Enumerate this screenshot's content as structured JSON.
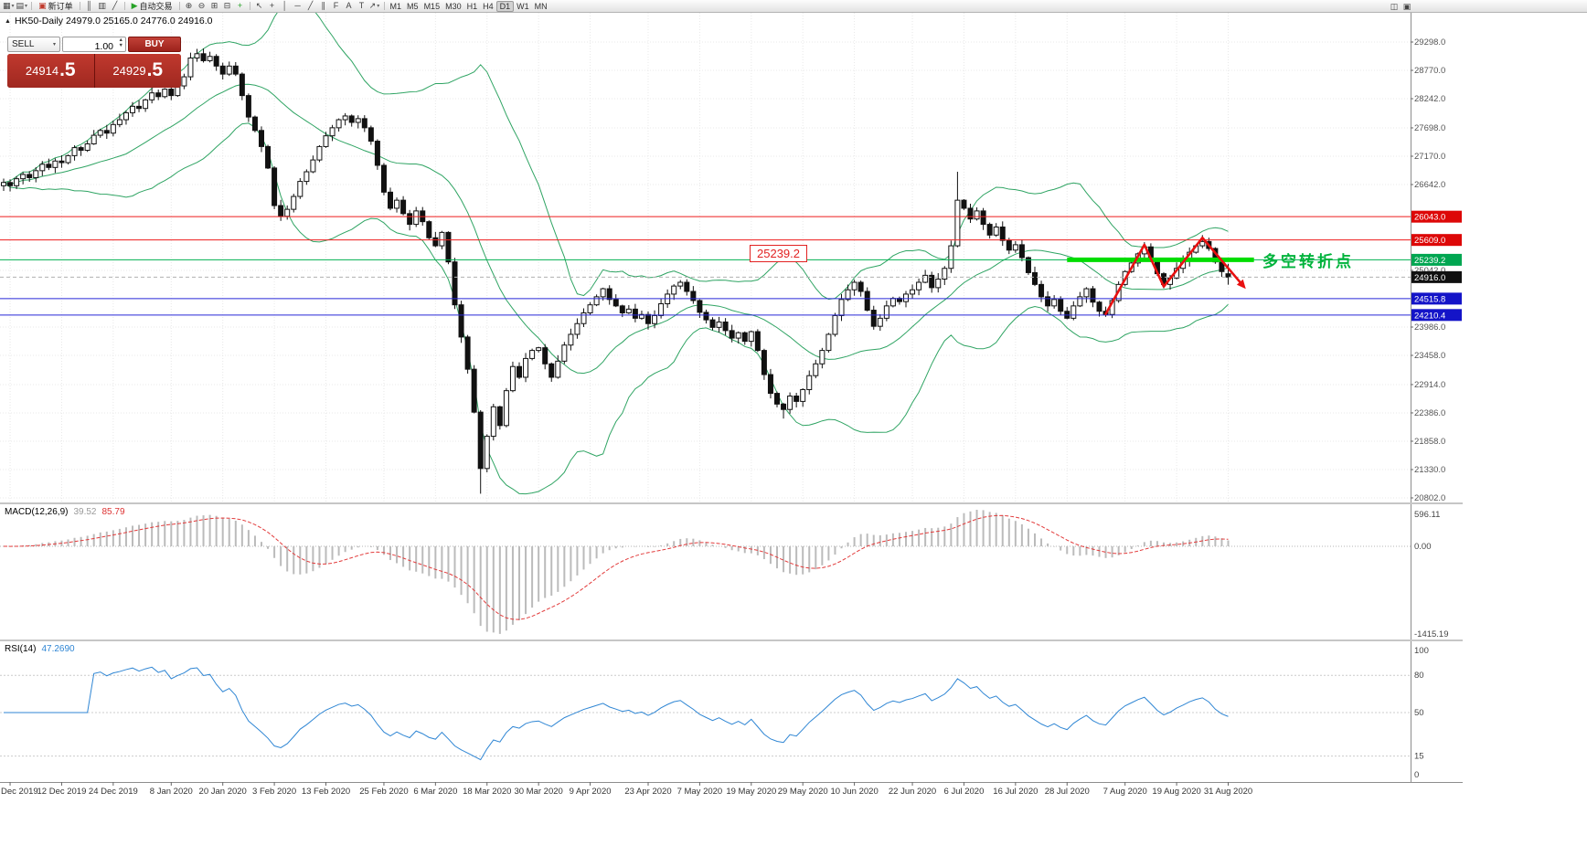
{
  "toolbar": {
    "items": [
      {
        "type": "icon",
        "name": "new-chart-icon",
        "glyph": "▦",
        "caret": true
      },
      {
        "type": "icon",
        "name": "profiles-icon",
        "glyph": "▤",
        "caret": true
      },
      {
        "type": "sep"
      },
      {
        "type": "button",
        "name": "new-order-button",
        "glyph": "▣",
        "glyph_color": "#c0392b",
        "label": "新订单"
      },
      {
        "type": "sep"
      },
      {
        "type": "icon",
        "name": "bar-chart-icon",
        "glyph": "║"
      },
      {
        "type": "icon",
        "name": "candlestick-chart-icon",
        "glyph": "▥"
      },
      {
        "type": "icon",
        "name": "line-chart-icon",
        "glyph": "╱"
      },
      {
        "type": "sep"
      },
      {
        "type": "button",
        "name": "auto-trading-button",
        "glyph": "▶",
        "glyph_color": "#27a227",
        "label": "自动交易"
      },
      {
        "type": "sep"
      },
      {
        "type": "icon",
        "name": "zoom-in-icon",
        "glyph": "⊕"
      },
      {
        "type": "icon",
        "name": "zoom-out-icon",
        "glyph": "⊖"
      },
      {
        "type": "icon",
        "name": "tile-windows-icon",
        "glyph": "⊞"
      },
      {
        "type": "icon",
        "name": "cascade-windows-icon",
        "glyph": "⊟"
      },
      {
        "type": "icon",
        "name": "add-indicator-icon",
        "glyph": "+",
        "glyph_color": "#27a227"
      },
      {
        "type": "sep"
      },
      {
        "type": "icon",
        "name": "cursor-icon",
        "glyph": "↖"
      },
      {
        "type": "icon",
        "name": "crosshair-icon",
        "glyph": "+"
      },
      {
        "type": "icon",
        "name": "vertical-line-icon",
        "glyph": "│"
      },
      {
        "type": "icon",
        "name": "horizontal-line-icon",
        "glyph": "─"
      },
      {
        "type": "icon",
        "name": "trendline-icon",
        "glyph": "╱"
      },
      {
        "type": "icon",
        "name": "channel-icon",
        "glyph": "∥"
      },
      {
        "type": "icon",
        "name": "fibonacci-icon",
        "glyph": "F"
      },
      {
        "type": "icon",
        "name": "text-icon",
        "glyph": "A"
      },
      {
        "type": "icon",
        "name": "text-label-icon",
        "glyph": "T"
      },
      {
        "type": "icon",
        "name": "arrows-icon",
        "glyph": "↗",
        "caret": true
      },
      {
        "type": "sep"
      },
      {
        "type": "timeframes"
      }
    ],
    "items_right": [
      {
        "type": "icon",
        "name": "chart-window-icon",
        "glyph": "◫"
      },
      {
        "type": "icon",
        "name": "docking-icon",
        "glyph": "▣"
      }
    ],
    "timeframes": [
      "M1",
      "M5",
      "M15",
      "M30",
      "H1",
      "H4",
      "D1",
      "W1",
      "MN"
    ],
    "active_timeframe": "D1"
  },
  "one_click": {
    "sell_label": "SELL",
    "buy_label": "BUY",
    "volume": "1.00",
    "sell_price_main": "24914",
    "sell_price_frac": ".5",
    "buy_price_main": "24929",
    "buy_price_frac": ".5"
  },
  "chart": {
    "symbol_info": "HK50-Daily  24979.0 25165.0 24776.0 24916.0",
    "annotation_price": "25239.2",
    "annotation_text": "多空转折点"
  },
  "macd": {
    "label": "MACD(12,26,9)",
    "value_main": "39.52",
    "value_signal": "85.79",
    "scale_max": "596.11",
    "scale_zero": "0.00",
    "scale_min": "-1415.19"
  },
  "rsi": {
    "label": "RSI(14)",
    "value": "47.2690",
    "scale_labels": [
      100,
      80,
      50,
      15,
      0
    ],
    "level_lines": [
      80,
      50,
      15
    ]
  },
  "chart_data": {
    "type": "candlestick",
    "symbol": "HK50",
    "period": "Daily",
    "last_ohlc": {
      "open": 24979.0,
      "high": 25165.0,
      "low": 24776.0,
      "close": 24916.0
    },
    "y_ticks": [
      29298.0,
      28770.0,
      28242.0,
      27698.0,
      27170.0,
      26642.0,
      25042.0,
      23986.0,
      23458.0,
      22914.0,
      22386.0,
      21858.0,
      21330.0,
      20802.0
    ],
    "time_axis": [
      {
        "label": "Dec 2019",
        "bar": 1
      },
      {
        "label": "12 Dec 2019",
        "bar": 9
      },
      {
        "label": "24 Dec 2019",
        "bar": 17
      },
      {
        "label": "8 Jan 2020",
        "bar": 26
      },
      {
        "label": "20 Jan 2020",
        "bar": 34
      },
      {
        "label": "3 Feb 2020",
        "bar": 42
      },
      {
        "label": "13 Feb 2020",
        "bar": 50
      },
      {
        "label": "25 Feb 2020",
        "bar": 59
      },
      {
        "label": "6 Mar 2020",
        "bar": 67
      },
      {
        "label": "18 Mar 2020",
        "bar": 75
      },
      {
        "label": "30 Mar 2020",
        "bar": 83
      },
      {
        "label": "9 Apr 2020",
        "bar": 91
      },
      {
        "label": "23 Apr 2020",
        "bar": 100
      },
      {
        "label": "7 May 2020",
        "bar": 108
      },
      {
        "label": "19 May 2020",
        "bar": 116
      },
      {
        "label": "29 May 2020",
        "bar": 124
      },
      {
        "label": "10 Jun 2020",
        "bar": 132
      },
      {
        "label": "22 Jun 2020",
        "bar": 141
      },
      {
        "label": "6 Jul 2020",
        "bar": 149
      },
      {
        "label": "16 Jul 2020",
        "bar": 157
      },
      {
        "label": "28 Jul 2020",
        "bar": 165
      },
      {
        "label": "7 Aug 2020",
        "bar": 174
      },
      {
        "label": "19 Aug 2020",
        "bar": 182
      },
      {
        "label": "31 Aug 2020",
        "bar": 190
      }
    ],
    "closes": [
      26680,
      26620,
      26750,
      26830,
      26770,
      26900,
      27020,
      26960,
      27080,
      27050,
      27180,
      27330,
      27280,
      27400,
      27560,
      27650,
      27600,
      27760,
      27850,
      27980,
      28100,
      28060,
      28220,
      28350,
      28280,
      28420,
      28300,
      28480,
      28650,
      29000,
      29080,
      28950,
      29030,
      28850,
      28700,
      28850,
      28700,
      28300,
      27900,
      27650,
      27350,
      26950,
      26250,
      26050,
      26180,
      26420,
      26700,
      26880,
      27100,
      27350,
      27550,
      27700,
      27850,
      27920,
      27800,
      27870,
      27700,
      27450,
      27000,
      26500,
      26200,
      26350,
      26100,
      25900,
      26150,
      25950,
      25650,
      25500,
      25750,
      25200,
      24400,
      23800,
      23200,
      22400,
      21350,
      21950,
      22500,
      22150,
      22800,
      23250,
      23050,
      23400,
      23550,
      23600,
      23300,
      23050,
      23350,
      23650,
      23850,
      24050,
      24250,
      24400,
      24550,
      24700,
      24500,
      24380,
      24250,
      24320,
      24150,
      24220,
      24050,
      24200,
      24420,
      24600,
      24750,
      24820,
      24650,
      24480,
      24260,
      24120,
      23980,
      24080,
      23920,
      23780,
      23880,
      23720,
      23900,
      23550,
      23100,
      22750,
      22550,
      22450,
      22700,
      22600,
      22820,
      23080,
      23300,
      23550,
      23850,
      24200,
      24500,
      24680,
      24820,
      24650,
      24300,
      24000,
      24150,
      24380,
      24520,
      24460,
      24600,
      24680,
      24820,
      24950,
      24720,
      24880,
      25080,
      25500,
      26350,
      26200,
      26000,
      26150,
      25900,
      25700,
      25850,
      25600,
      25420,
      25520,
      25280,
      25000,
      24780,
      24550,
      24380,
      24500,
      24280,
      24150,
      24380,
      24550,
      24700,
      24450,
      24280,
      24220,
      24480,
      24780,
      25020,
      25180,
      25350,
      25480,
      25250,
      24980,
      24780,
      24900,
      25080,
      25220,
      25380,
      25500,
      25580,
      25450,
      25200,
      25020,
      24916
    ],
    "wicks": {
      "30": {
        "high": 29170
      },
      "74": {
        "low": 20880
      },
      "121": {
        "low": 22280
      },
      "148": {
        "high": 26880
      },
      "186": {
        "high": 25700
      },
      "190": {
        "open": 24979,
        "high": 25165,
        "low": 24776
      }
    },
    "hlines": [
      {
        "name": "resistance-line-upper",
        "value": 26043.0,
        "color": "#ee1c1c",
        "badge": "26043.0",
        "badge_color": "#dd0808"
      },
      {
        "name": "resistance-line-lower",
        "value": 25609.0,
        "color": "#ee1c1c",
        "badge": "25609.0",
        "badge_color": "#dd0808"
      },
      {
        "name": "pivot-line",
        "value": 25239.2,
        "color": "#00b050",
        "badge": "25239.2",
        "badge_color": "#00a651"
      },
      {
        "name": "bid-price-line",
        "value": 24916.0,
        "color": "#b0b0b0",
        "style": "dash",
        "badge": "24916.0",
        "badge_color": "#101010"
      },
      {
        "name": "support-line-upper",
        "value": 24515.8,
        "color": "#2828d8",
        "badge": "24515.8",
        "badge_color": "#1414c8"
      },
      {
        "name": "support-line-lower",
        "value": 24210.4,
        "color": "#2828d8",
        "badge": "24210.4",
        "badge_color": "#1414c8"
      }
    ],
    "pivot_segment": {
      "value": 25239.2,
      "from_bar": 165,
      "to_bar": 194,
      "color": "#00dd00",
      "width": 5
    },
    "zigzag": {
      "color": "#e81010",
      "points": [
        [
          171,
          24230
        ],
        [
          177,
          25520
        ],
        [
          180,
          24740
        ],
        [
          186,
          25650
        ],
        [
          192,
          24800
        ]
      ]
    },
    "indicators": {
      "bollinger": {
        "period": 20,
        "deviation": 2,
        "color": "#2fa463"
      },
      "macd": {
        "fast": 12,
        "slow": 26,
        "signal": 9
      },
      "rsi": {
        "period": 14
      }
    }
  }
}
